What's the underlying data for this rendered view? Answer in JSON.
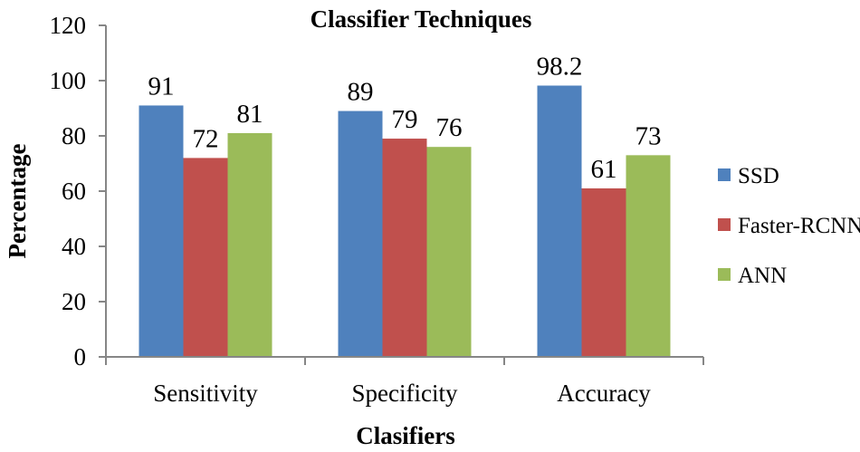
{
  "chart_data": {
    "type": "bar",
    "title": "Classifier Techniques",
    "xlabel": "Clasifiers",
    "ylabel": "Percentage",
    "ylim": [
      0,
      120
    ],
    "yticks": [
      "0",
      "20",
      "40",
      "60",
      "80",
      "100",
      "120"
    ],
    "categories": [
      "Sensitivity",
      "Specificity",
      "Accuracy"
    ],
    "series": [
      {
        "name": "SSD",
        "color": "#4f81bd",
        "values": [
          91,
          89,
          98.2
        ],
        "labels": [
          "91",
          "89",
          "98.2"
        ]
      },
      {
        "name": "Faster-RCNN",
        "color": "#c0504d",
        "values": [
          72,
          79,
          61
        ],
        "labels": [
          "72",
          "79",
          "61"
        ]
      },
      {
        "name": "ANN",
        "color": "#9bbb59",
        "values": [
          81,
          76,
          73
        ],
        "labels": [
          "81",
          "76",
          "73"
        ]
      }
    ],
    "grid": false,
    "legend_position": "right"
  }
}
